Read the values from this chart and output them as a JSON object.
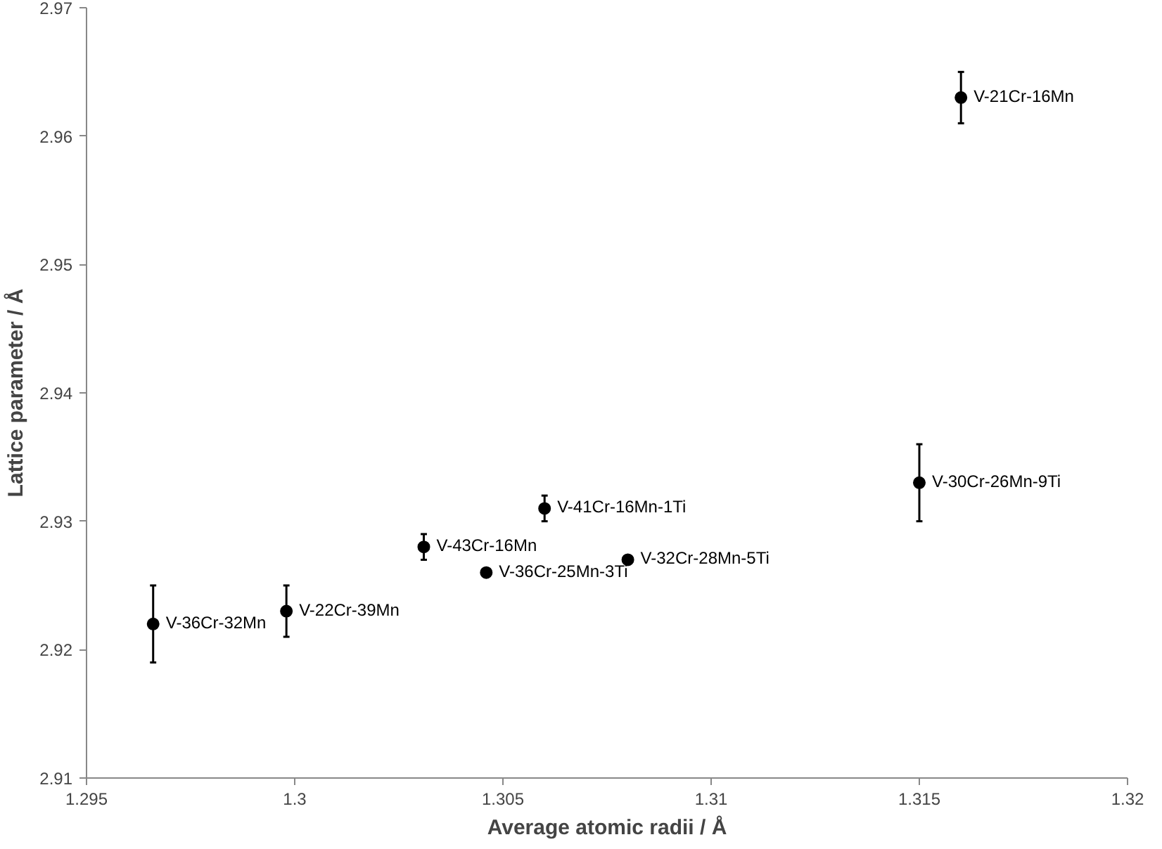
{
  "chart_data": {
    "type": "scatter",
    "xlabel": "Average atomic radii / Å",
    "ylabel": "Lattice parameter / Å",
    "x": [
      1.2966,
      1.2998,
      1.3031,
      1.3046,
      1.306,
      1.308,
      1.315,
      1.316
    ],
    "values": [
      2.922,
      2.923,
      2.928,
      2.926,
      2.931,
      2.927,
      2.933,
      2.963
    ],
    "errors": [
      0.003,
      0.002,
      0.001,
      null,
      0.001,
      null,
      0.003,
      0.002
    ],
    "value_labels": [
      "V-36Cr-32Mn",
      "V-22Cr-39Mn",
      "V-43Cr-16Mn",
      "V-36Cr-25Mn-3Ti",
      "V-41Cr-16Mn-1Ti",
      "V-32Cr-28Mn-5Ti",
      "V-30Cr-26Mn-9Ti",
      "V-21Cr-16Mn"
    ],
    "color": "#000000",
    "marker": "circle",
    "grid": false,
    "xlim": [
      1.295,
      1.32
    ],
    "xticks": [
      1.295,
      1.3,
      1.305,
      1.31,
      1.315,
      1.32
    ],
    "ylim": [
      2.91,
      2.97
    ],
    "yticks": [
      2.91,
      2.92,
      2.93,
      2.94,
      2.95,
      2.96,
      2.97
    ]
  }
}
